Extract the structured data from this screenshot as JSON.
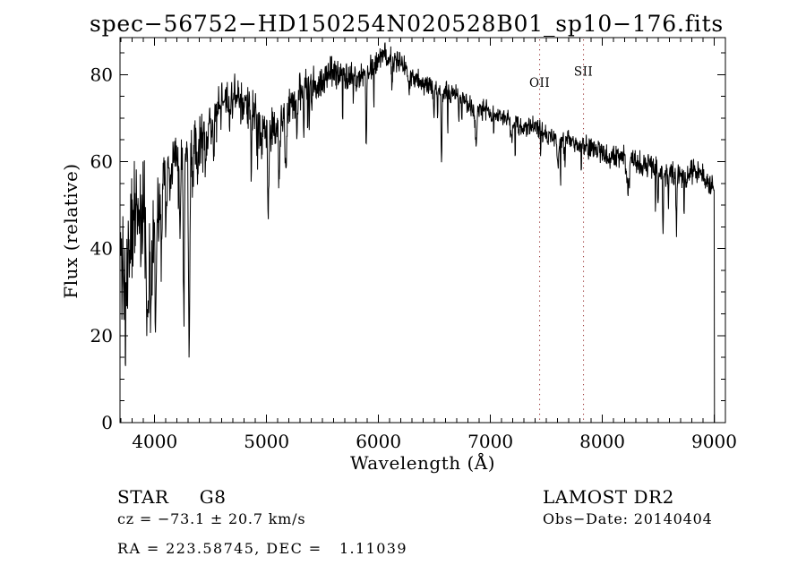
{
  "title": "spec−56752−HD150254N020528B01_sp10−176.fits",
  "chart_data": {
    "type": "line",
    "title": "spec−56752−HD150254N020528B01_sp10−176.fits",
    "xlabel": "Wavelength (Å)",
    "ylabel": "Flux (relative)",
    "xlim": [
      3690,
      9100
    ],
    "ylim": [
      0,
      88.5
    ],
    "grid": false,
    "line_color": "#000000",
    "x_ticks": [
      4000,
      5000,
      6000,
      7000,
      8000,
      9000
    ],
    "x_tick_labels": [
      "4000",
      "5000",
      "6000",
      "7000",
      "8000",
      "9000"
    ],
    "x_minor_step": 100,
    "y_ticks": [
      0,
      20,
      40,
      60,
      80
    ],
    "y_tick_labels": [
      "0",
      "20",
      "40",
      "60",
      "80"
    ],
    "y_minor_step": 5,
    "reference_lines": {
      "color": "#993333",
      "items": [
        {
          "label": "OII",
          "wavelength": 7440,
          "label_flux": 77.2
        },
        {
          "label": "SII",
          "wavelength": 7832,
          "label_flux": 79.8
        }
      ]
    },
    "spectrum": {
      "seed": 11,
      "sample_step": 3,
      "wavelength_start": 3692,
      "wavelength_end": 9000,
      "end_drop": {
        "wavelength": 9002,
        "flux": 0
      },
      "continuum": [
        [
          3690,
          36
        ],
        [
          3720,
          34
        ],
        [
          3760,
          40
        ],
        [
          3800,
          46
        ],
        [
          3840,
          50
        ],
        [
          3880,
          48
        ],
        [
          3920,
          46
        ],
        [
          3960,
          44
        ],
        [
          4000,
          50
        ],
        [
          4060,
          56
        ],
        [
          4120,
          60
        ],
        [
          4180,
          62
        ],
        [
          4240,
          63
        ],
        [
          4300,
          63
        ],
        [
          4360,
          65
        ],
        [
          4420,
          66
        ],
        [
          4480,
          68
        ],
        [
          4540,
          70
        ],
        [
          4600,
          73
        ],
        [
          4660,
          74
        ],
        [
          4720,
          75
        ],
        [
          4780,
          74
        ],
        [
          4840,
          73
        ],
        [
          4900,
          71
        ],
        [
          4960,
          69
        ],
        [
          5020,
          67
        ],
        [
          5080,
          67
        ],
        [
          5140,
          68
        ],
        [
          5200,
          72
        ],
        [
          5260,
          74
        ],
        [
          5320,
          76
        ],
        [
          5380,
          77
        ],
        [
          5440,
          78
        ],
        [
          5500,
          79
        ],
        [
          5560,
          80
        ],
        [
          5620,
          81
        ],
        [
          5680,
          80
        ],
        [
          5740,
          79
        ],
        [
          5800,
          79
        ],
        [
          5860,
          80
        ],
        [
          5920,
          81
        ],
        [
          5980,
          83
        ],
        [
          6040,
          84
        ],
        [
          6100,
          84
        ],
        [
          6160,
          83
        ],
        [
          6220,
          82
        ],
        [
          6280,
          80
        ],
        [
          6340,
          79
        ],
        [
          6400,
          78
        ],
        [
          6460,
          78
        ],
        [
          6520,
          77
        ],
        [
          6580,
          76
        ],
        [
          6640,
          76
        ],
        [
          6700,
          75
        ],
        [
          6760,
          74
        ],
        [
          6820,
          73
        ],
        [
          6880,
          72
        ],
        [
          6940,
          72
        ],
        [
          7000,
          71
        ],
        [
          7100,
          70
        ],
        [
          7200,
          69
        ],
        [
          7300,
          68
        ],
        [
          7400,
          68
        ],
        [
          7500,
          66
        ],
        [
          7600,
          65
        ],
        [
          7700,
          65
        ],
        [
          7800,
          64
        ],
        [
          7900,
          63
        ],
        [
          8000,
          62
        ],
        [
          8100,
          61
        ],
        [
          8200,
          61
        ],
        [
          8300,
          60
        ],
        [
          8400,
          59
        ],
        [
          8500,
          58
        ],
        [
          8600,
          57
        ],
        [
          8700,
          57
        ],
        [
          8800,
          58
        ],
        [
          8900,
          57
        ],
        [
          8960,
          55
        ],
        [
          9000,
          54
        ]
      ],
      "noise_amplitude": [
        [
          3690,
          15
        ],
        [
          3740,
          14
        ],
        [
          3800,
          12
        ],
        [
          3860,
          11
        ],
        [
          3920,
          11
        ],
        [
          3980,
          10
        ],
        [
          4050,
          7
        ],
        [
          4150,
          6
        ],
        [
          4300,
          5.5
        ],
        [
          4500,
          5
        ],
        [
          4700,
          4.5
        ],
        [
          4900,
          5
        ],
        [
          5100,
          4.5
        ],
        [
          5300,
          4
        ],
        [
          5500,
          3.5
        ],
        [
          5700,
          3
        ],
        [
          5900,
          2.8
        ],
        [
          6100,
          2.5
        ],
        [
          6300,
          2.5
        ],
        [
          6600,
          2.3
        ],
        [
          7000,
          2
        ],
        [
          7400,
          2
        ],
        [
          7800,
          2.2
        ],
        [
          8200,
          2.5
        ],
        [
          8600,
          2.8
        ],
        [
          9000,
          2.2
        ]
      ],
      "absorption_lines": [
        [
          3933,
          20,
          9
        ],
        [
          3969,
          18,
          8
        ],
        [
          4007,
          30,
          6
        ],
        [
          4063,
          9,
          5
        ],
        [
          4101,
          11,
          6
        ],
        [
          4144,
          8,
          5
        ],
        [
          4226,
          13,
          5
        ],
        [
          4260,
          40,
          5
        ],
        [
          4308,
          47,
          6
        ],
        [
          4340,
          10,
          6
        ],
        [
          4383,
          13,
          5
        ],
        [
          4455,
          11,
          4
        ],
        [
          4531,
          9,
          4
        ],
        [
          4668,
          7,
          4
        ],
        [
          4861,
          12,
          6
        ],
        [
          4920,
          8,
          5
        ],
        [
          4957,
          7,
          5
        ],
        [
          5015,
          17,
          6
        ],
        [
          5110,
          13,
          5
        ],
        [
          5172,
          12,
          7
        ],
        [
          5270,
          8,
          4
        ],
        [
          5332,
          6,
          4
        ],
        [
          5405,
          6,
          4
        ],
        [
          5890,
          17,
          4
        ],
        [
          6122,
          6,
          4
        ],
        [
          6280,
          4,
          5
        ],
        [
          6495,
          6,
          4
        ],
        [
          6563,
          16,
          4
        ],
        [
          6717,
          4,
          4
        ],
        [
          6870,
          7,
          9
        ],
        [
          7190,
          4,
          8
        ],
        [
          7605,
          6,
          8
        ],
        [
          7665,
          4,
          6
        ],
        [
          8230,
          7,
          12
        ],
        [
          8498,
          8,
          4
        ],
        [
          8542,
          13,
          4
        ],
        [
          8590,
          6,
          4
        ],
        [
          8662,
          13,
          4
        ],
        [
          8750,
          5,
          4
        ]
      ]
    }
  },
  "footer": {
    "class_label": "STAR     G8",
    "survey": "LAMOST DR2",
    "cz": "cz = −73.1 ± 20.7 km/s",
    "obs_date": "Obs−Date: 20140404",
    "coords": "RA = 223.58745, DEC =   1.11039"
  }
}
